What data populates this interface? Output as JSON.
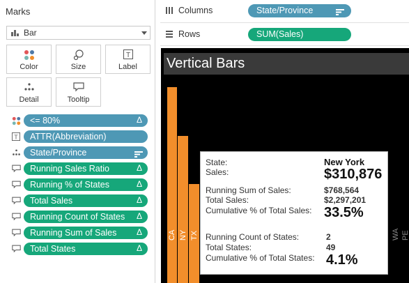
{
  "marks": {
    "title": "Marks",
    "mark_type": "Bar",
    "buttons": {
      "color": "Color",
      "size": "Size",
      "label": "Label",
      "detail": "Detail",
      "tooltip": "Tooltip"
    },
    "fields": [
      {
        "label": "<= 80%",
        "color": "blue",
        "icon": "color-dots-icon",
        "trailing": "Δ"
      },
      {
        "label": "ATTR(Abbreviation)",
        "color": "blue",
        "icon": "text-label-icon",
        "trailing": ""
      },
      {
        "label": "State/Province",
        "color": "blue",
        "icon": "detail-dots-icon",
        "trailing": "sort"
      },
      {
        "label": "Running Sales Ratio",
        "color": "green",
        "icon": "tooltip-icon",
        "trailing": "Δ"
      },
      {
        "label": "Running % of States",
        "color": "green",
        "icon": "tooltip-icon",
        "trailing": "Δ"
      },
      {
        "label": "Total Sales",
        "color": "green",
        "icon": "tooltip-icon",
        "trailing": "Δ"
      },
      {
        "label": "Running Count of States",
        "color": "green",
        "icon": "tooltip-icon",
        "trailing": "Δ"
      },
      {
        "label": "Running Sum of Sales",
        "color": "green",
        "icon": "tooltip-icon",
        "trailing": "Δ"
      },
      {
        "label": "Total States",
        "color": "green",
        "icon": "tooltip-icon",
        "trailing": "Δ"
      }
    ]
  },
  "shelves": {
    "columns_label": "Columns",
    "columns_pill": "State/Province",
    "rows_label": "Rows",
    "rows_pill": "SUM(Sales)"
  },
  "viz": {
    "title": "Vertical Bars",
    "bars": [
      {
        "label": "CA"
      },
      {
        "label": "NY"
      },
      {
        "label": "TX"
      }
    ],
    "partial_labels": [
      "WA",
      "PE"
    ]
  },
  "tooltip": {
    "state_label": "State:",
    "state_value": "New York",
    "sales_label": "Sales:",
    "sales_value": "$310,876",
    "running_sum_label": "Running Sum of Sales:",
    "running_sum_value": "$768,564",
    "total_sales_label": "Total Sales:",
    "total_sales_value": "$2,297,201",
    "cum_pct_sales_label": "Cumulative % of Total Sales:",
    "cum_pct_sales_value": "33.5%",
    "running_count_label": "Running Count of States:",
    "running_count_value": "2",
    "total_states_label": "Total States:",
    "total_states_value": "49",
    "cum_pct_states_label": "Cumulative % of Total States:",
    "cum_pct_states_value": "4.1%"
  },
  "colors": {
    "pill_blue": "#4e98b5",
    "pill_green": "#16a77a",
    "bar_orange": "#f28e2b",
    "viz_background": "#000000"
  }
}
